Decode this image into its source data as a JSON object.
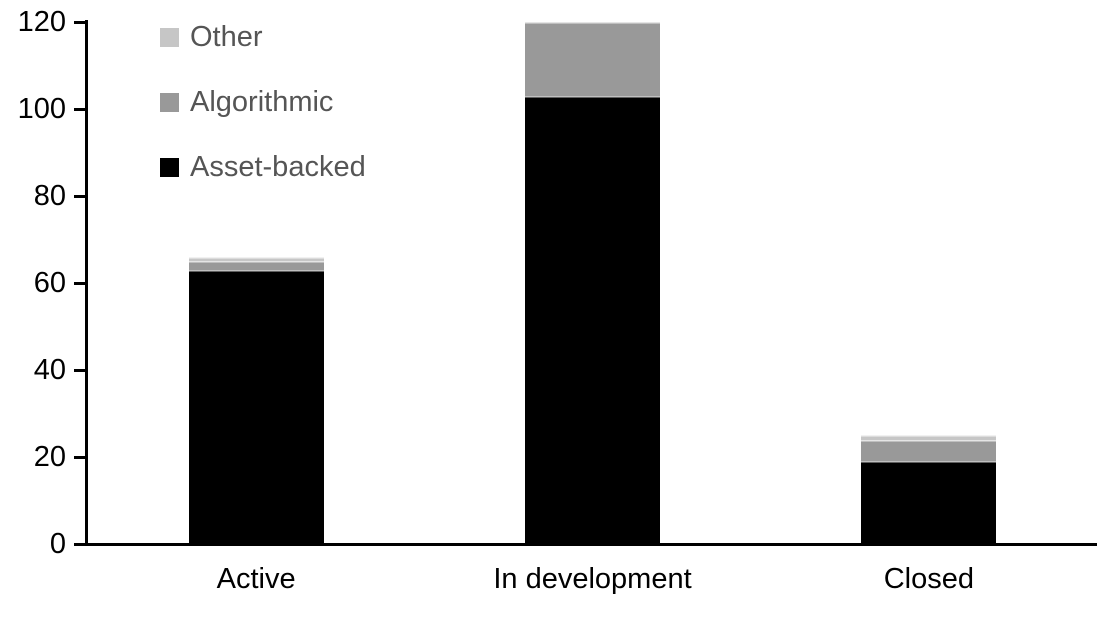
{
  "chart_data": {
    "type": "bar",
    "stacked": true,
    "title": "",
    "xlabel": "",
    "ylabel": "",
    "categories": [
      "Active",
      "In development",
      "Closed"
    ],
    "series": [
      {
        "name": "Asset-backed",
        "color": "#000000",
        "values": [
          63,
          103,
          19
        ]
      },
      {
        "name": "Algorithmic",
        "color": "#999999",
        "values": [
          2,
          17,
          5
        ]
      },
      {
        "name": "Other",
        "color": "#c6c6c6",
        "values": [
          1,
          0,
          1
        ]
      }
    ],
    "totals": [
      66,
      120,
      25
    ],
    "y_axis": {
      "min": 0,
      "max": 120,
      "tick_interval": 20,
      "tick_labels": [
        "0",
        "20",
        "40",
        "60",
        "80",
        "100",
        "120"
      ]
    },
    "legend": {
      "position": "top-left",
      "order": [
        "Other",
        "Algorithmic",
        "Asset-backed"
      ]
    },
    "grid": false,
    "colors": {
      "axis": "#000000",
      "tick_label_text": "#000000",
      "category_label_text": "#000000",
      "legend_text": "#555555",
      "background": "#ffffff"
    }
  }
}
